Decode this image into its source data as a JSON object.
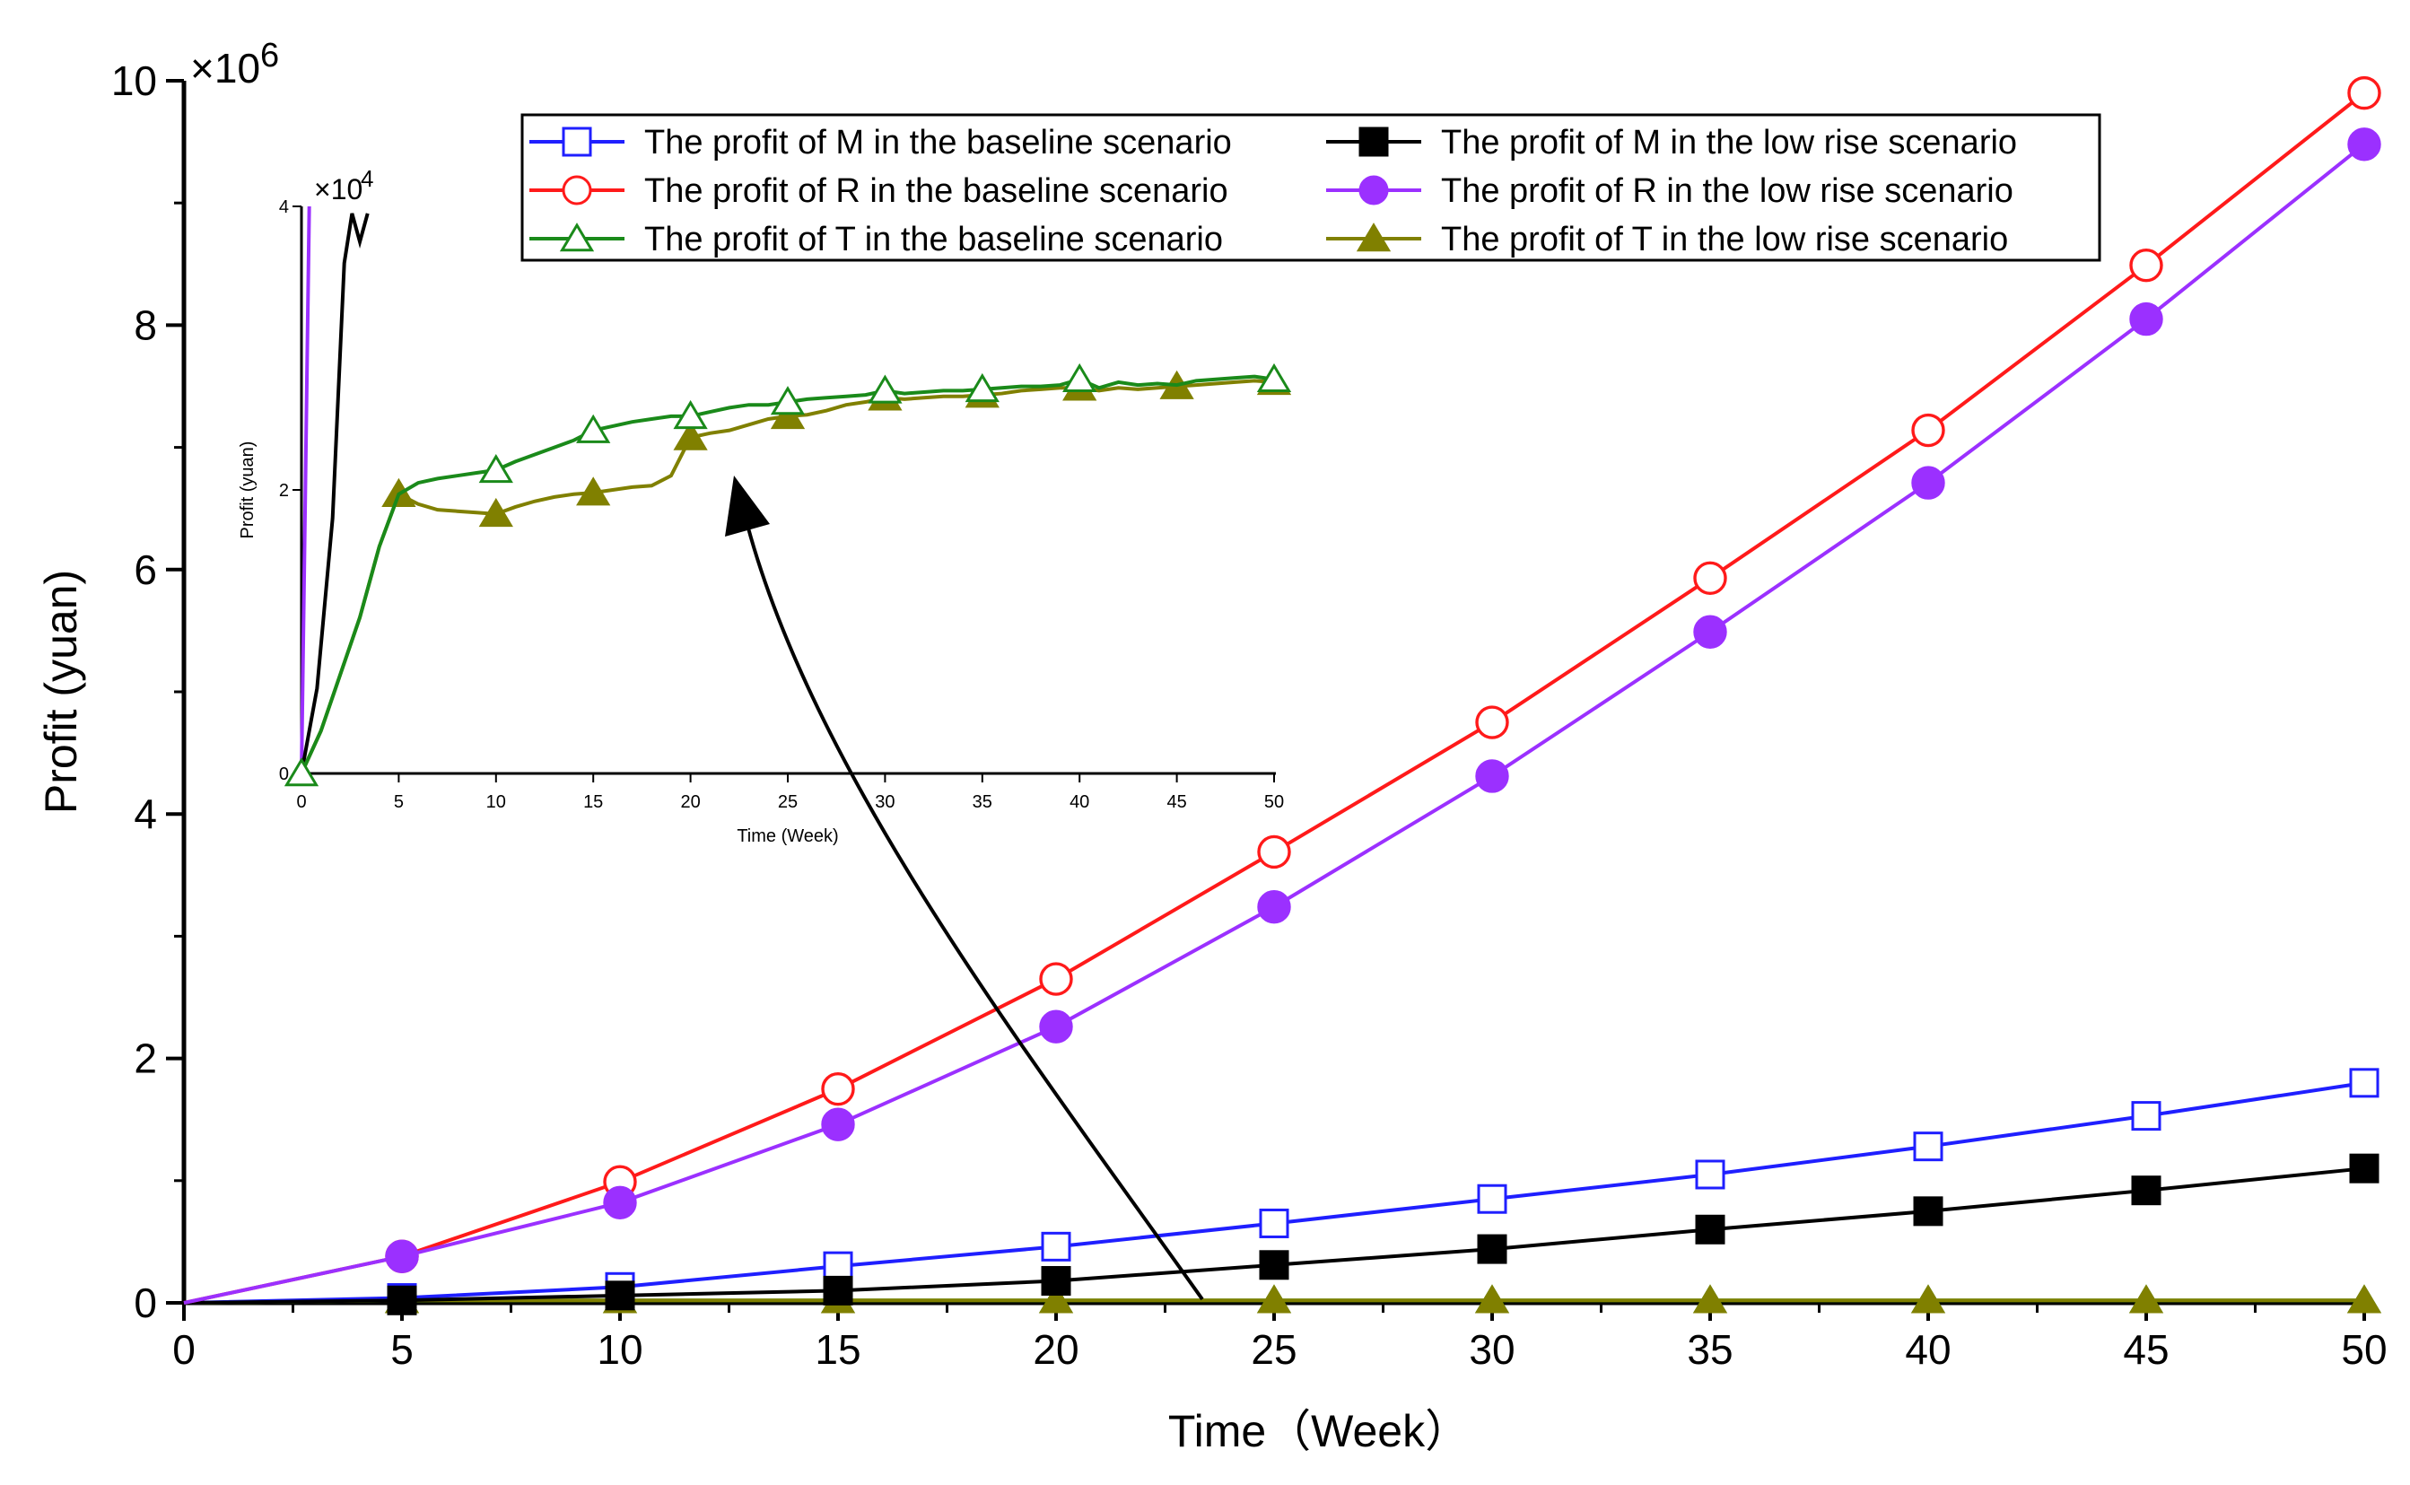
{
  "chart_data": [
    {
      "type": "line",
      "xlabel": "Time（Week）",
      "ylabel": "Profit (yuan)",
      "y_multiplier": "×10^6",
      "y_multiplier_base": "×10",
      "y_multiplier_exp": "6",
      "xlim": [
        0,
        50
      ],
      "ylim": [
        0,
        10
      ],
      "x_ticks": [
        "0",
        "5",
        "10",
        "15",
        "20",
        "25",
        "30",
        "35",
        "40",
        "45",
        "50"
      ],
      "y_ticks": [
        "0",
        "2",
        "4",
        "6",
        "8",
        "10"
      ],
      "marker_x": [
        0,
        5,
        10,
        15,
        20,
        25,
        30,
        35,
        40,
        45,
        50
      ],
      "legend_position": "top",
      "series": [
        {
          "name": "The profit of M in the baseline scenario",
          "color": "#1f1fff",
          "marker": "open-square",
          "values": [
            0.0,
            0.04,
            0.13,
            0.3,
            0.46,
            0.65,
            0.85,
            1.05,
            1.28,
            1.53,
            1.8
          ]
        },
        {
          "name": "The profit of R in the baseline scenario",
          "color": "#ff1a1a",
          "marker": "open-circle",
          "values": [
            0.0,
            0.38,
            0.99,
            1.75,
            2.65,
            3.69,
            4.75,
            5.93,
            7.14,
            8.49,
            9.9
          ]
        },
        {
          "name": "The profit of T in the baseline scenario",
          "color": "#1a8a1a",
          "marker": "open-triangle",
          "values": [
            0.0,
            0.02,
            0.02,
            0.02,
            0.02,
            0.02,
            0.02,
            0.02,
            0.02,
            0.02,
            0.02
          ]
        },
        {
          "name": "The profit of M in the low rise scenario",
          "color": "#000000",
          "marker": "filled-square",
          "values": [
            0.0,
            0.02,
            0.06,
            0.1,
            0.18,
            0.31,
            0.44,
            0.6,
            0.75,
            0.92,
            1.1
          ]
        },
        {
          "name": "The profit of R in the low rise scenario",
          "color": "#9b30ff",
          "marker": "filled-circle",
          "values": [
            0.0,
            0.38,
            0.82,
            1.46,
            2.26,
            3.24,
            4.31,
            5.49,
            6.71,
            8.05,
            9.48
          ]
        },
        {
          "name": "The profit of T in the low rise scenario",
          "color": "#808000",
          "marker": "filled-triangle",
          "values": [
            0.0,
            0.02,
            0.02,
            0.02,
            0.02,
            0.02,
            0.02,
            0.02,
            0.02,
            0.02,
            0.02
          ]
        }
      ]
    },
    {
      "type": "line",
      "xlabel": "Time (Week)",
      "ylabel": "Profit (yuan)",
      "y_multiplier": "×10^4",
      "y_multiplier_base": "×10",
      "y_multiplier_exp": "4",
      "xlim": [
        0,
        50
      ],
      "ylim": [
        0,
        4
      ],
      "x_ticks": [
        "0",
        "5",
        "10",
        "15",
        "20",
        "25",
        "30",
        "35",
        "40",
        "45",
        "50"
      ],
      "y_ticks": [
        "0",
        "2",
        "4"
      ],
      "series": [
        {
          "name": "The profit of T in the baseline scenario",
          "color": "#1a8a1a",
          "marker": "open-triangle",
          "x": [
            0,
            1,
            2,
            3,
            4,
            5,
            6,
            7,
            8,
            9,
            10,
            11,
            12,
            13,
            14,
            15,
            16,
            17,
            18,
            19,
            20,
            21,
            22,
            23,
            24,
            25,
            26,
            27,
            28,
            29,
            30,
            31,
            32,
            33,
            34,
            35,
            36,
            37,
            38,
            39,
            40,
            41,
            42,
            43,
            44,
            45,
            46,
            47,
            48,
            49,
            50
          ],
          "values": [
            0.0,
            0.3,
            0.7,
            1.1,
            1.6,
            1.97,
            2.05,
            2.08,
            2.1,
            2.12,
            2.14,
            2.2,
            2.25,
            2.3,
            2.35,
            2.42,
            2.45,
            2.48,
            2.5,
            2.52,
            2.52,
            2.55,
            2.58,
            2.6,
            2.6,
            2.62,
            2.64,
            2.65,
            2.66,
            2.67,
            2.7,
            2.68,
            2.69,
            2.7,
            2.7,
            2.71,
            2.72,
            2.73,
            2.73,
            2.74,
            2.78,
            2.72,
            2.76,
            2.74,
            2.75,
            2.74,
            2.77,
            2.78,
            2.79,
            2.8,
            2.78
          ],
          "marker_x": [
            0,
            10,
            15,
            20,
            25,
            30,
            35,
            40,
            50
          ]
        },
        {
          "name": "The profit of T in the low rise scenario",
          "color": "#808000",
          "marker": "filled-triangle",
          "x": [
            0,
            1,
            2,
            3,
            4,
            5,
            6,
            7,
            8,
            9,
            10,
            11,
            12,
            13,
            14,
            15,
            16,
            17,
            18,
            19,
            20,
            21,
            22,
            23,
            24,
            25,
            26,
            27,
            28,
            29,
            30,
            31,
            32,
            33,
            34,
            35,
            36,
            37,
            38,
            39,
            40,
            41,
            42,
            43,
            44,
            45,
            46,
            47,
            48,
            49,
            50
          ],
          "values": [
            0.0,
            0.3,
            0.7,
            1.1,
            1.6,
            1.97,
            1.9,
            1.86,
            1.85,
            1.84,
            1.83,
            1.88,
            1.92,
            1.95,
            1.97,
            1.98,
            2.0,
            2.02,
            2.03,
            2.1,
            2.37,
            2.4,
            2.42,
            2.46,
            2.5,
            2.52,
            2.53,
            2.56,
            2.6,
            2.62,
            2.65,
            2.64,
            2.65,
            2.66,
            2.66,
            2.67,
            2.68,
            2.7,
            2.71,
            2.72,
            2.72,
            2.7,
            2.72,
            2.71,
            2.72,
            2.73,
            2.74,
            2.75,
            2.76,
            2.77,
            2.76
          ],
          "marker_x": [
            5,
            10,
            15,
            20,
            25,
            30,
            35,
            40,
            45,
            50
          ]
        },
        {
          "name": "The profit of R in the low rise scenario",
          "color": "#9b30ff",
          "marker": "none",
          "x": [
            0,
            0.2,
            0.4
          ],
          "values": [
            0.0,
            2.0,
            4.0
          ]
        },
        {
          "name": "The profit of M in the low rise scenario",
          "color": "#000000",
          "marker": "none",
          "x": [
            0,
            0.8,
            1.6,
            2.2,
            2.6,
            3.0,
            3.4
          ],
          "values": [
            0.0,
            0.6,
            1.8,
            3.6,
            3.95,
            3.75,
            3.95
          ]
        }
      ]
    }
  ]
}
